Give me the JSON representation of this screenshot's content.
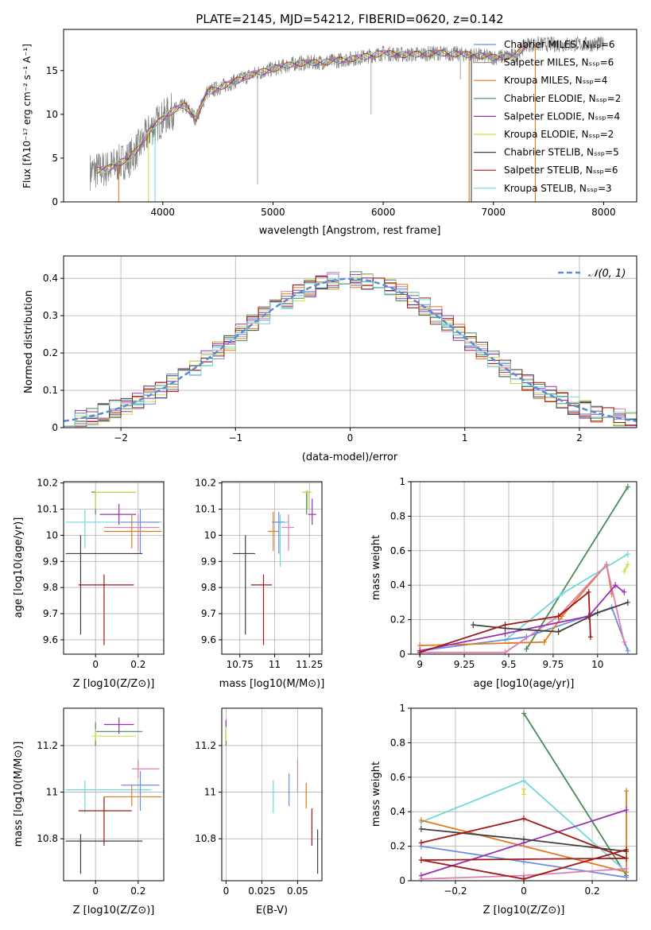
{
  "figure_title": "PLATE=2145, MJD=54212, FIBERID=0620, z=0.142",
  "colors": {
    "Chabrier MILES": "#6a8ee0",
    "Salpeter MILES": "#9a9a9a",
    "Kroupa MILES": "#e07b20",
    "Chabrier ELODIE": "#4a8a5a",
    "Salpeter ELODIE": "#9a30b0",
    "Kroupa ELODIE": "#c8e050",
    "Chabrier STELIB": "#404040",
    "Salpeter STELIB": "#a01818",
    "Kroupa STELIB": "#70d8d8",
    "pink": "#e080b0",
    "gaussian": "#5a8ad8"
  },
  "chart_data": [
    {
      "id": "spectrum",
      "type": "line",
      "xlabel": "wavelength [Angstrom, rest frame]",
      "ylabel": "Flux [fλ10⁻¹⁷ erg cm⁻² s⁻¹ A⁻¹]",
      "xlim": [
        3100,
        8300
      ],
      "ylim": [
        0,
        19.7
      ],
      "xticks": [
        4000,
        5000,
        6000,
        7000,
        8000
      ],
      "yticks": [
        0,
        5,
        10,
        15
      ],
      "legend_position": "top-right",
      "legend": [
        "Chabrier MILES, N_SSP=6",
        "Salpeter MILES, N_SSP=6",
        "Kroupa MILES, N_SSP=4",
        "Chabrier ELODIE, N_SSP=2",
        "Salpeter ELODIE, N_SSP=4",
        "Kroupa ELODIE, N_SSP=2",
        "Chabrier STELIB, N_SSP=5",
        "Salpeter STELIB, N_SSP=6",
        "Kroupa STELIB, N_SSP=3"
      ],
      "data_continuum": {
        "x": [
          3340,
          3500,
          3700,
          3800,
          3900,
          4000,
          4100,
          4200,
          4300,
          4400,
          4600,
          4800,
          5000,
          5200,
          5500,
          5800,
          6000,
          6200,
          6500,
          6800,
          7000,
          7200,
          7300
        ],
        "y": [
          3.5,
          3.8,
          5.0,
          6.5,
          8.5,
          9.5,
          10.5,
          11.0,
          9.5,
          12.5,
          13.5,
          14.5,
          15.2,
          15.8,
          16.0,
          16.5,
          17.0,
          16.8,
          17.0,
          16.8,
          16.5,
          16.7,
          18.0
        ]
      }
    },
    {
      "id": "residual_histogram",
      "type": "line",
      "xlabel": "(data-model)/error",
      "ylabel": "Normed distribution",
      "xlim": [
        -2.5,
        2.5
      ],
      "ylim": [
        0,
        0.46
      ],
      "xticks": [
        -2,
        -1,
        0,
        1,
        2
      ],
      "yticks": [
        0.0,
        0.1,
        0.2,
        0.3,
        0.4
      ],
      "grid": true,
      "legend": [
        "𝒩(0, 1)"
      ],
      "legend_position": "top-right"
    },
    {
      "id": "age_vs_Z",
      "type": "scatter",
      "xlabel": "Z [log10(Z/Z⊙)]",
      "ylabel": "age  [log10(age/yr)]",
      "xlim": [
        -0.15,
        0.32
      ],
      "ylim": [
        9.545,
        10.205
      ],
      "xticks": [
        0.0,
        0.2
      ],
      "yticks": [
        9.6,
        9.7,
        9.8,
        9.9,
        10.0,
        10.1,
        10.2
      ],
      "grid": true
    },
    {
      "id": "age_vs_mass",
      "type": "scatter",
      "xlabel": "mass [log10(M/M⊙)]",
      "xlim": [
        10.62,
        11.34
      ],
      "ylim": [
        9.545,
        10.205
      ],
      "xticks": [
        10.75,
        11.0,
        11.25
      ],
      "yticks": [
        9.6,
        9.7,
        9.8,
        9.9,
        10.0,
        10.1,
        10.2
      ],
      "grid": true
    },
    {
      "id": "mass_weight_vs_age",
      "type": "line",
      "xlabel": "age  [log10(age/yr)]",
      "ylabel": "mass weight",
      "xlim": [
        8.95,
        10.22
      ],
      "ylim": [
        0,
        1.0
      ],
      "xticks": [
        9.0,
        9.25,
        9.5,
        9.75,
        10.0
      ],
      "yticks": [
        0.0,
        0.2,
        0.4,
        0.6,
        0.8,
        1.0
      ],
      "grid": true
    },
    {
      "id": "mass_vs_Z",
      "type": "scatter",
      "xlabel": "Z [log10(Z/Z⊙)]",
      "ylabel": "mass [log10(M/M⊙)]",
      "xlim": [
        -0.15,
        0.32
      ],
      "ylim": [
        10.62,
        11.36
      ],
      "xticks": [
        0.0,
        0.2
      ],
      "yticks": [
        10.8,
        11.0,
        11.2
      ],
      "grid": true
    },
    {
      "id": "mass_vs_ebv",
      "type": "scatter",
      "xlabel": "E(B-V)",
      "xlim": [
        -0.003,
        0.067
      ],
      "ylim": [
        10.62,
        11.36
      ],
      "xticks": [
        0.0,
        0.025,
        0.05
      ],
      "yticks": [
        10.8,
        11.0,
        11.2
      ],
      "grid": true
    },
    {
      "id": "mass_weight_vs_Z",
      "type": "line",
      "xlabel": "Z [log10(Z/Z⊙)]",
      "ylabel": "mass weight",
      "xlim": [
        -0.33,
        0.33
      ],
      "ylim": [
        0,
        1.0
      ],
      "xticks": [
        -0.2,
        0.0,
        0.2
      ],
      "yticks": [
        0.0,
        0.2,
        0.4,
        0.6,
        0.8,
        1.0
      ],
      "grid": true
    }
  ]
}
